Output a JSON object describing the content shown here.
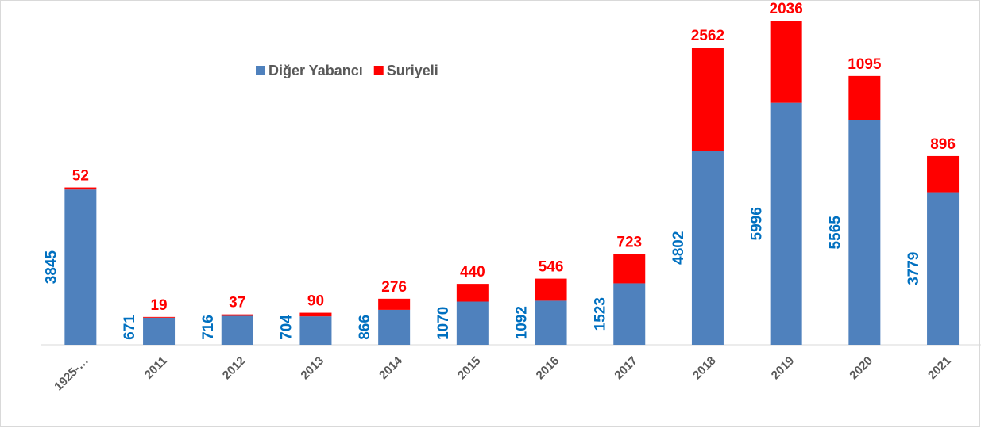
{
  "chart_data": {
    "type": "stacked_bar",
    "categories": [
      "1925-…",
      "2011",
      "2012",
      "2013",
      "2014",
      "2015",
      "2016",
      "2017",
      "2018",
      "2019",
      "2020",
      "2021"
    ],
    "series": [
      {
        "name": "Diğer Yabancı",
        "color": "#4f81bd",
        "label_color": "#0070c0",
        "values": [
          3845,
          671,
          716,
          704,
          866,
          1070,
          1092,
          1523,
          4802,
          5996,
          5565,
          3779
        ]
      },
      {
        "name": "Suriyeli",
        "color": "#ff0000",
        "label_color": "#ff0000",
        "values": [
          52,
          19,
          37,
          90,
          276,
          440,
          546,
          723,
          2562,
          2036,
          1095,
          896
        ]
      }
    ]
  }
}
